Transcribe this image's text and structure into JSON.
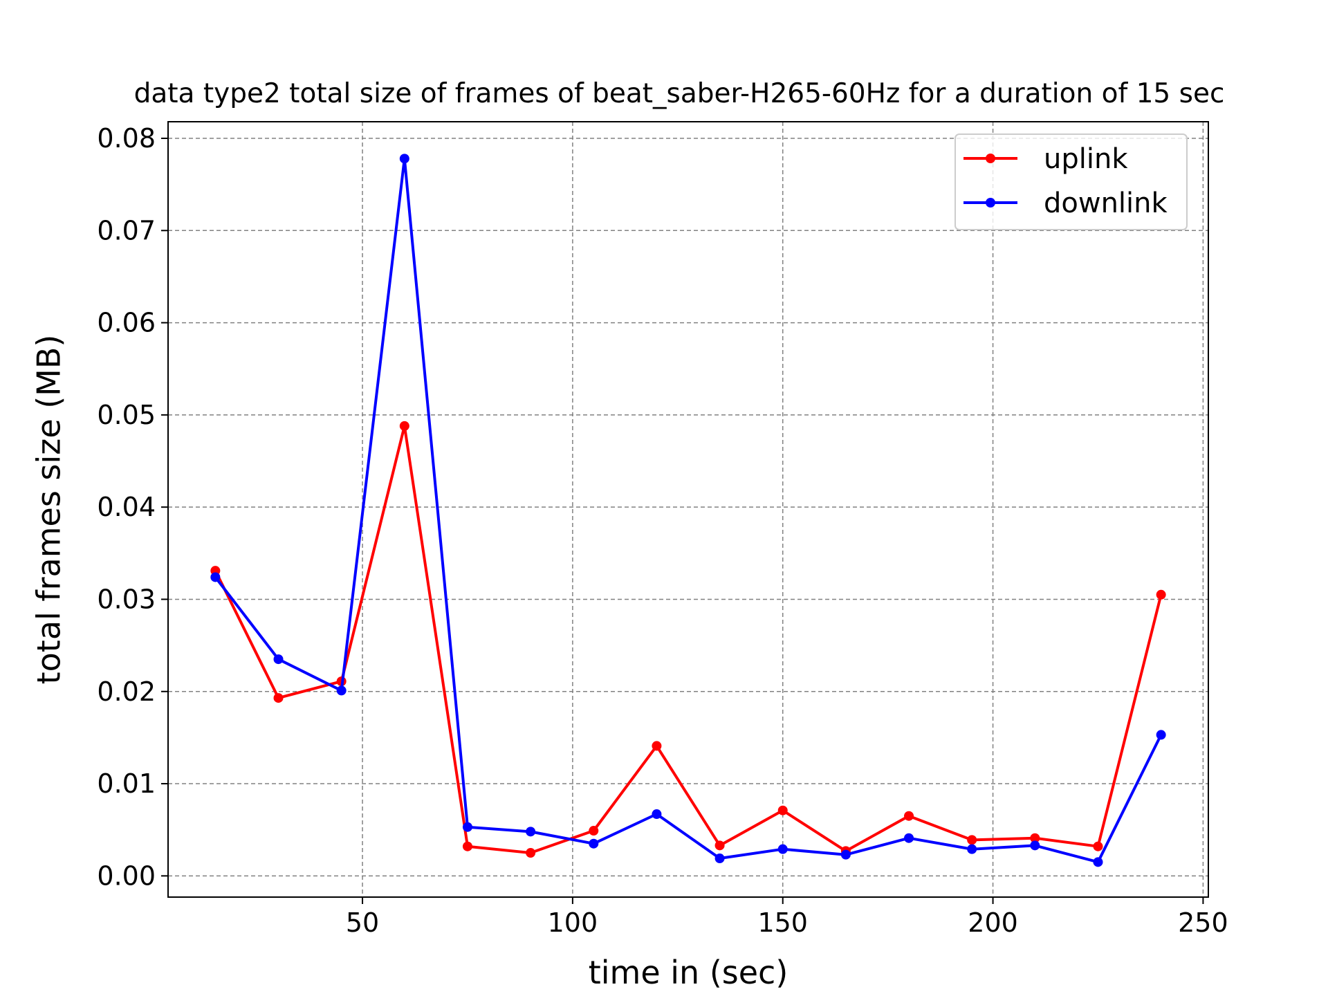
{
  "chart_data": {
    "type": "line",
    "title": "data type2 total size of frames of beat_saber-H265-60Hz for a duration of 15 sec",
    "xlabel": "time in (sec)",
    "ylabel": "total frames size (MB)",
    "xlim": [
      3.75,
      251.25
    ],
    "ylim": [
      -0.0023,
      0.0818
    ],
    "xticks": [
      50,
      100,
      150,
      200,
      250
    ],
    "xtick_labels": [
      "50",
      "100",
      "150",
      "200",
      "250"
    ],
    "yticks": [
      0.0,
      0.01,
      0.02,
      0.03,
      0.04,
      0.05,
      0.06,
      0.07,
      0.08
    ],
    "ytick_labels": [
      "0.00",
      "0.01",
      "0.02",
      "0.03",
      "0.04",
      "0.05",
      "0.06",
      "0.07",
      "0.08"
    ],
    "grid": true,
    "legend_position": "top-right",
    "x": [
      15,
      30,
      45,
      60,
      75,
      90,
      105,
      120,
      135,
      150,
      165,
      180,
      195,
      210,
      225,
      240
    ],
    "series": [
      {
        "name": "uplink",
        "color": "#ff0000",
        "values": [
          0.0331,
          0.0193,
          0.0211,
          0.0488,
          0.0032,
          0.0025,
          0.0049,
          0.0141,
          0.0033,
          0.0071,
          0.0027,
          0.0065,
          0.0039,
          0.0041,
          0.0032,
          0.0305
        ]
      },
      {
        "name": "downlink",
        "color": "#0000ff",
        "values": [
          0.0324,
          0.0235,
          0.0201,
          0.0778,
          0.0053,
          0.0048,
          0.0035,
          0.0067,
          0.0019,
          0.0029,
          0.0023,
          0.0041,
          0.0029,
          0.0033,
          0.0015,
          0.0153
        ]
      }
    ]
  }
}
